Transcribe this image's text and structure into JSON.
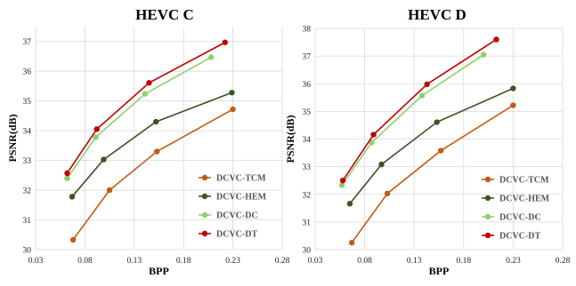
{
  "chart_data": [
    {
      "type": "line",
      "title": "HEVC C",
      "xlabel": "BPP",
      "ylabel": "PSNR(dB)",
      "xlim": [
        0.03,
        0.28
      ],
      "ylim": [
        30,
        37.5
      ],
      "xticks": [
        "0.03",
        "0.08",
        "0.13",
        "0.18",
        "0.23",
        "0.28"
      ],
      "yticks": [
        "30",
        "31",
        "32",
        "33",
        "34",
        "35",
        "36",
        "37"
      ],
      "grid": true,
      "legend_position": "bottom-right",
      "series": [
        {
          "name": "DCVC-TCM",
          "color": "#c55a11",
          "x": [
            0.068,
            0.105,
            0.153,
            0.23
          ],
          "y": [
            30.33,
            32.0,
            33.3,
            34.72
          ]
        },
        {
          "name": "DCVC-HEM",
          "color": "#375623",
          "x": [
            0.067,
            0.099,
            0.152,
            0.229
          ],
          "y": [
            31.78,
            33.03,
            34.3,
            35.28
          ]
        },
        {
          "name": "DCVC-DC",
          "color": "#8fce6e",
          "x": [
            0.062,
            0.091,
            0.141,
            0.208
          ],
          "y": [
            32.4,
            33.78,
            35.24,
            36.47
          ]
        },
        {
          "name": "DCVC-DT",
          "color": "#c00000",
          "x": [
            0.062,
            0.092,
            0.145,
            0.222
          ],
          "y": [
            32.57,
            34.05,
            35.61,
            36.97
          ]
        }
      ]
    },
    {
      "type": "line",
      "title": "HEVC D",
      "xlabel": "BPP",
      "ylabel": "PSNR(dB)",
      "xlim": [
        0.03,
        0.28
      ],
      "ylim": [
        30,
        38
      ],
      "xticks": [
        "0.03",
        "0.08",
        "0.13",
        "0.18",
        "0.23",
        "0.28"
      ],
      "yticks": [
        "30",
        "31",
        "32",
        "33",
        "34",
        "35",
        "36",
        "37",
        "38"
      ],
      "grid": true,
      "legend_position": "bottom-right",
      "series": [
        {
          "name": "DCVC-TCM",
          "color": "#c55a11",
          "x": [
            0.067,
            0.103,
            0.157,
            0.23
          ],
          "y": [
            30.25,
            32.03,
            33.58,
            35.22
          ]
        },
        {
          "name": "DCVC-HEM",
          "color": "#375623",
          "x": [
            0.065,
            0.097,
            0.153,
            0.23
          ],
          "y": [
            31.66,
            33.08,
            34.61,
            35.83
          ]
        },
        {
          "name": "DCVC-DC",
          "color": "#8fce6e",
          "x": [
            0.057,
            0.087,
            0.138,
            0.2
          ],
          "y": [
            32.33,
            33.87,
            35.57,
            37.05
          ]
        },
        {
          "name": "DCVC-DT",
          "color": "#c00000",
          "x": [
            0.058,
            0.089,
            0.143,
            0.213
          ],
          "y": [
            32.5,
            34.16,
            35.98,
            37.6
          ]
        }
      ]
    }
  ]
}
